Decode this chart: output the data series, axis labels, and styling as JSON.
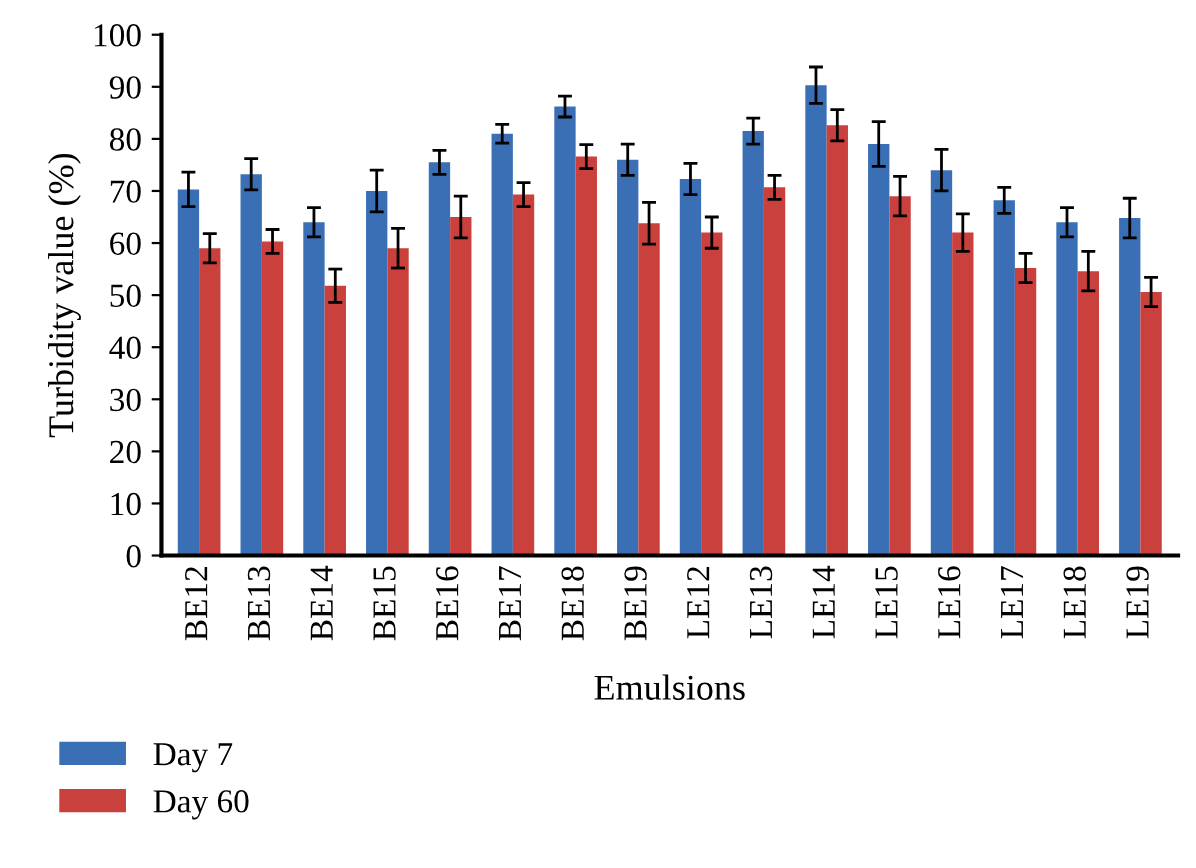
{
  "chart_data": {
    "type": "bar",
    "xlabel": "Emulsions",
    "ylabel": "Turbidity value (%)",
    "categories": [
      "BE12",
      "BE13",
      "BE14",
      "BE15",
      "BE16",
      "BE17",
      "BE18",
      "BE19",
      "LE12",
      "LE13",
      "LE14",
      "LE15",
      "LE16",
      "LE17",
      "LE18",
      "LE19"
    ],
    "series": [
      {
        "name": "Day 7",
        "color": "#3a6fb5",
        "values": [
          70.3,
          73.2,
          64,
          70,
          75.5,
          81,
          86.2,
          76,
          72.3,
          81.5,
          90.3,
          79,
          74,
          68.2,
          64,
          64.8
        ],
        "errors": [
          3.3,
          3,
          2.8,
          4,
          2.3,
          1.8,
          2,
          3,
          3,
          2.5,
          3.5,
          4.3,
          4,
          2.5,
          2.8,
          3.8
        ]
      },
      {
        "name": "Day 60",
        "color": "#c9403c",
        "values": [
          59,
          60.3,
          51.8,
          59,
          65,
          69.3,
          76.6,
          63.8,
          62,
          70.7,
          82.6,
          69,
          62,
          55.2,
          54.6,
          50.6
        ],
        "errors": [
          2.8,
          2.3,
          3.2,
          3.8,
          4,
          2.3,
          2.3,
          4,
          3,
          2.3,
          3,
          3.8,
          3.6,
          2.8,
          3.8,
          2.8
        ]
      }
    ],
    "ylim": [
      0,
      100
    ],
    "yticks": [
      0,
      10,
      20,
      30,
      40,
      50,
      60,
      70,
      80,
      90,
      100
    ],
    "grid": false,
    "legend": "bottom left"
  }
}
